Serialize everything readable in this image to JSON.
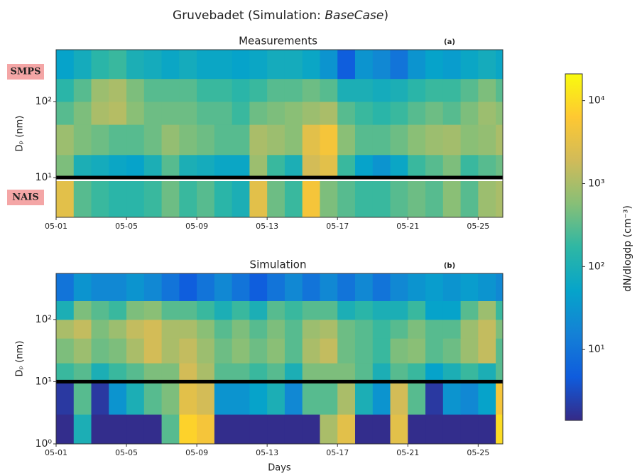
{
  "title_parts": [
    "Gruvebadet (Simulation: ",
    "BaseCase",
    ")"
  ],
  "colorbar": {
    "label": "dN/dlogdp (cm⁻³)",
    "lim": [
      1.4,
      21000
    ],
    "log": true,
    "ticks": [
      {
        "value": 10,
        "label": "10¹"
      },
      {
        "value": 100,
        "label": "10²"
      },
      {
        "value": 1000,
        "label": "10³"
      },
      {
        "value": 10000,
        "label": "10⁴"
      }
    ],
    "colormap": [
      "#352a87",
      "#0f5cdd",
      "#1481d6",
      "#06a4ca",
      "#2eb7a4",
      "#87bf77",
      "#d1bb59",
      "#fec832",
      "#f9fb0e"
    ]
  },
  "chart_data": [
    {
      "type": "heatmap",
      "title": "Measurements",
      "panel_label": "(a)",
      "ylabel": "Dₚ (nm)",
      "annotations": [
        "SMPS",
        "NAIS"
      ],
      "xlim": [
        0,
        25.4
      ],
      "ylim": [
        3,
        480
      ],
      "log_y": true,
      "hline": 10,
      "xticks": [
        {
          "value": 0,
          "label": "05-01"
        },
        {
          "value": 4,
          "label": "05-05"
        },
        {
          "value": 8,
          "label": "05-09"
        },
        {
          "value": 12,
          "label": "05-13"
        },
        {
          "value": 16,
          "label": "05-17"
        },
        {
          "value": 20,
          "label": "05-21"
        },
        {
          "value": 24,
          "label": "05-25"
        }
      ],
      "yticks": [
        {
          "value": 10,
          "label": "10¹"
        },
        {
          "value": 100,
          "label": "10²"
        }
      ],
      "x_edges": [
        0,
        1,
        2,
        3,
        4,
        5,
        6,
        7,
        8,
        9,
        10,
        11,
        12,
        13,
        14,
        15,
        16,
        17,
        18,
        19,
        20,
        21,
        22,
        23,
        24,
        25,
        25.4
      ],
      "y_edges": [
        3,
        10,
        20,
        50,
        100,
        200,
        480
      ],
      "z": [
        [
          3000,
          300,
          200,
          150,
          150,
          200,
          400,
          200,
          300,
          150,
          100,
          3000,
          400,
          200,
          5000,
          500,
          300,
          200,
          200,
          300,
          400,
          300,
          600,
          300,
          800,
          1000
        ],
        [
          500,
          100,
          80,
          60,
          50,
          100,
          300,
          100,
          80,
          60,
          60,
          800,
          200,
          100,
          2000,
          3000,
          200,
          50,
          30,
          60,
          200,
          300,
          500,
          200,
          300,
          400
        ],
        [
          800,
          500,
          400,
          300,
          300,
          400,
          700,
          500,
          400,
          300,
          300,
          1000,
          800,
          600,
          3000,
          5000,
          600,
          300,
          300,
          400,
          600,
          800,
          900,
          600,
          700,
          1000
        ],
        [
          300,
          500,
          1000,
          1200,
          600,
          400,
          400,
          400,
          300,
          300,
          200,
          400,
          500,
          600,
          800,
          1000,
          300,
          200,
          150,
          200,
          300,
          400,
          300,
          500,
          800,
          600
        ],
        [
          150,
          300,
          800,
          1000,
          500,
          300,
          300,
          300,
          200,
          200,
          150,
          200,
          300,
          300,
          400,
          300,
          100,
          100,
          80,
          100,
          150,
          200,
          200,
          300,
          500,
          300
        ],
        [
          50,
          80,
          150,
          200,
          100,
          80,
          60,
          80,
          60,
          60,
          50,
          60,
          80,
          80,
          60,
          30,
          5,
          30,
          20,
          10,
          30,
          50,
          40,
          60,
          80,
          60
        ]
      ]
    },
    {
      "type": "heatmap",
      "title": "Simulation",
      "panel_label": "(b)",
      "ylabel": "Dₚ (nm)",
      "xlabel": "Days",
      "xlim": [
        0,
        25.4
      ],
      "ylim": [
        1,
        550
      ],
      "log_y": true,
      "hline": 10,
      "xticks": [
        {
          "value": 0,
          "label": "05-01"
        },
        {
          "value": 4,
          "label": "05-05"
        },
        {
          "value": 8,
          "label": "05-09"
        },
        {
          "value": 12,
          "label": "05-13"
        },
        {
          "value": 16,
          "label": "05-17"
        },
        {
          "value": 20,
          "label": "05-21"
        },
        {
          "value": 24,
          "label": "05-25"
        }
      ],
      "yticks": [
        {
          "value": 1,
          "label": "10⁰"
        },
        {
          "value": 10,
          "label": "10¹"
        },
        {
          "value": 100,
          "label": "10²"
        }
      ],
      "x_edges": [
        0,
        1,
        2,
        3,
        4,
        5,
        6,
        7,
        8,
        9,
        10,
        11,
        12,
        13,
        14,
        15,
        16,
        17,
        18,
        19,
        20,
        21,
        22,
        23,
        24,
        25,
        25.4
      ],
      "y_edges": [
        1,
        3,
        10,
        20,
        50,
        100,
        200,
        550
      ],
      "z": [
        [
          1.5,
          100,
          1.5,
          1.5,
          1.5,
          1.5,
          300,
          8000,
          5000,
          1.5,
          1.5,
          1.5,
          1.5,
          1.5,
          1.5,
          1000,
          3000,
          1.5,
          1.5,
          3000,
          1.5,
          1.5,
          1.5,
          1.5,
          1.5,
          10000
        ],
        [
          2,
          300,
          2,
          30,
          100,
          300,
          500,
          3000,
          2000,
          30,
          30,
          50,
          100,
          20,
          300,
          300,
          1000,
          100,
          30,
          2000,
          300,
          2,
          30,
          20,
          50,
          5000
        ],
        [
          200,
          300,
          100,
          200,
          300,
          500,
          500,
          2000,
          1000,
          300,
          300,
          200,
          300,
          100,
          500,
          500,
          500,
          300,
          100,
          300,
          200,
          50,
          100,
          200,
          100,
          300
        ],
        [
          500,
          800,
          400,
          500,
          1000,
          2000,
          1000,
          1500,
          800,
          400,
          600,
          400,
          600,
          300,
          1000,
          1500,
          400,
          300,
          200,
          500,
          600,
          300,
          400,
          800,
          1500,
          300
        ],
        [
          1000,
          1500,
          500,
          800,
          1500,
          2000,
          1000,
          1000,
          600,
          300,
          500,
          300,
          500,
          300,
          800,
          1000,
          400,
          300,
          200,
          300,
          500,
          300,
          300,
          800,
          1500,
          500
        ],
        [
          100,
          500,
          300,
          200,
          500,
          600,
          300,
          300,
          200,
          100,
          200,
          100,
          300,
          200,
          300,
          300,
          100,
          150,
          100,
          100,
          200,
          50,
          50,
          300,
          800,
          200
        ],
        [
          10,
          30,
          20,
          20,
          30,
          20,
          10,
          5,
          10,
          20,
          10,
          5,
          10,
          20,
          10,
          20,
          10,
          20,
          10,
          20,
          30,
          40,
          30,
          40,
          30,
          20
        ]
      ]
    }
  ]
}
